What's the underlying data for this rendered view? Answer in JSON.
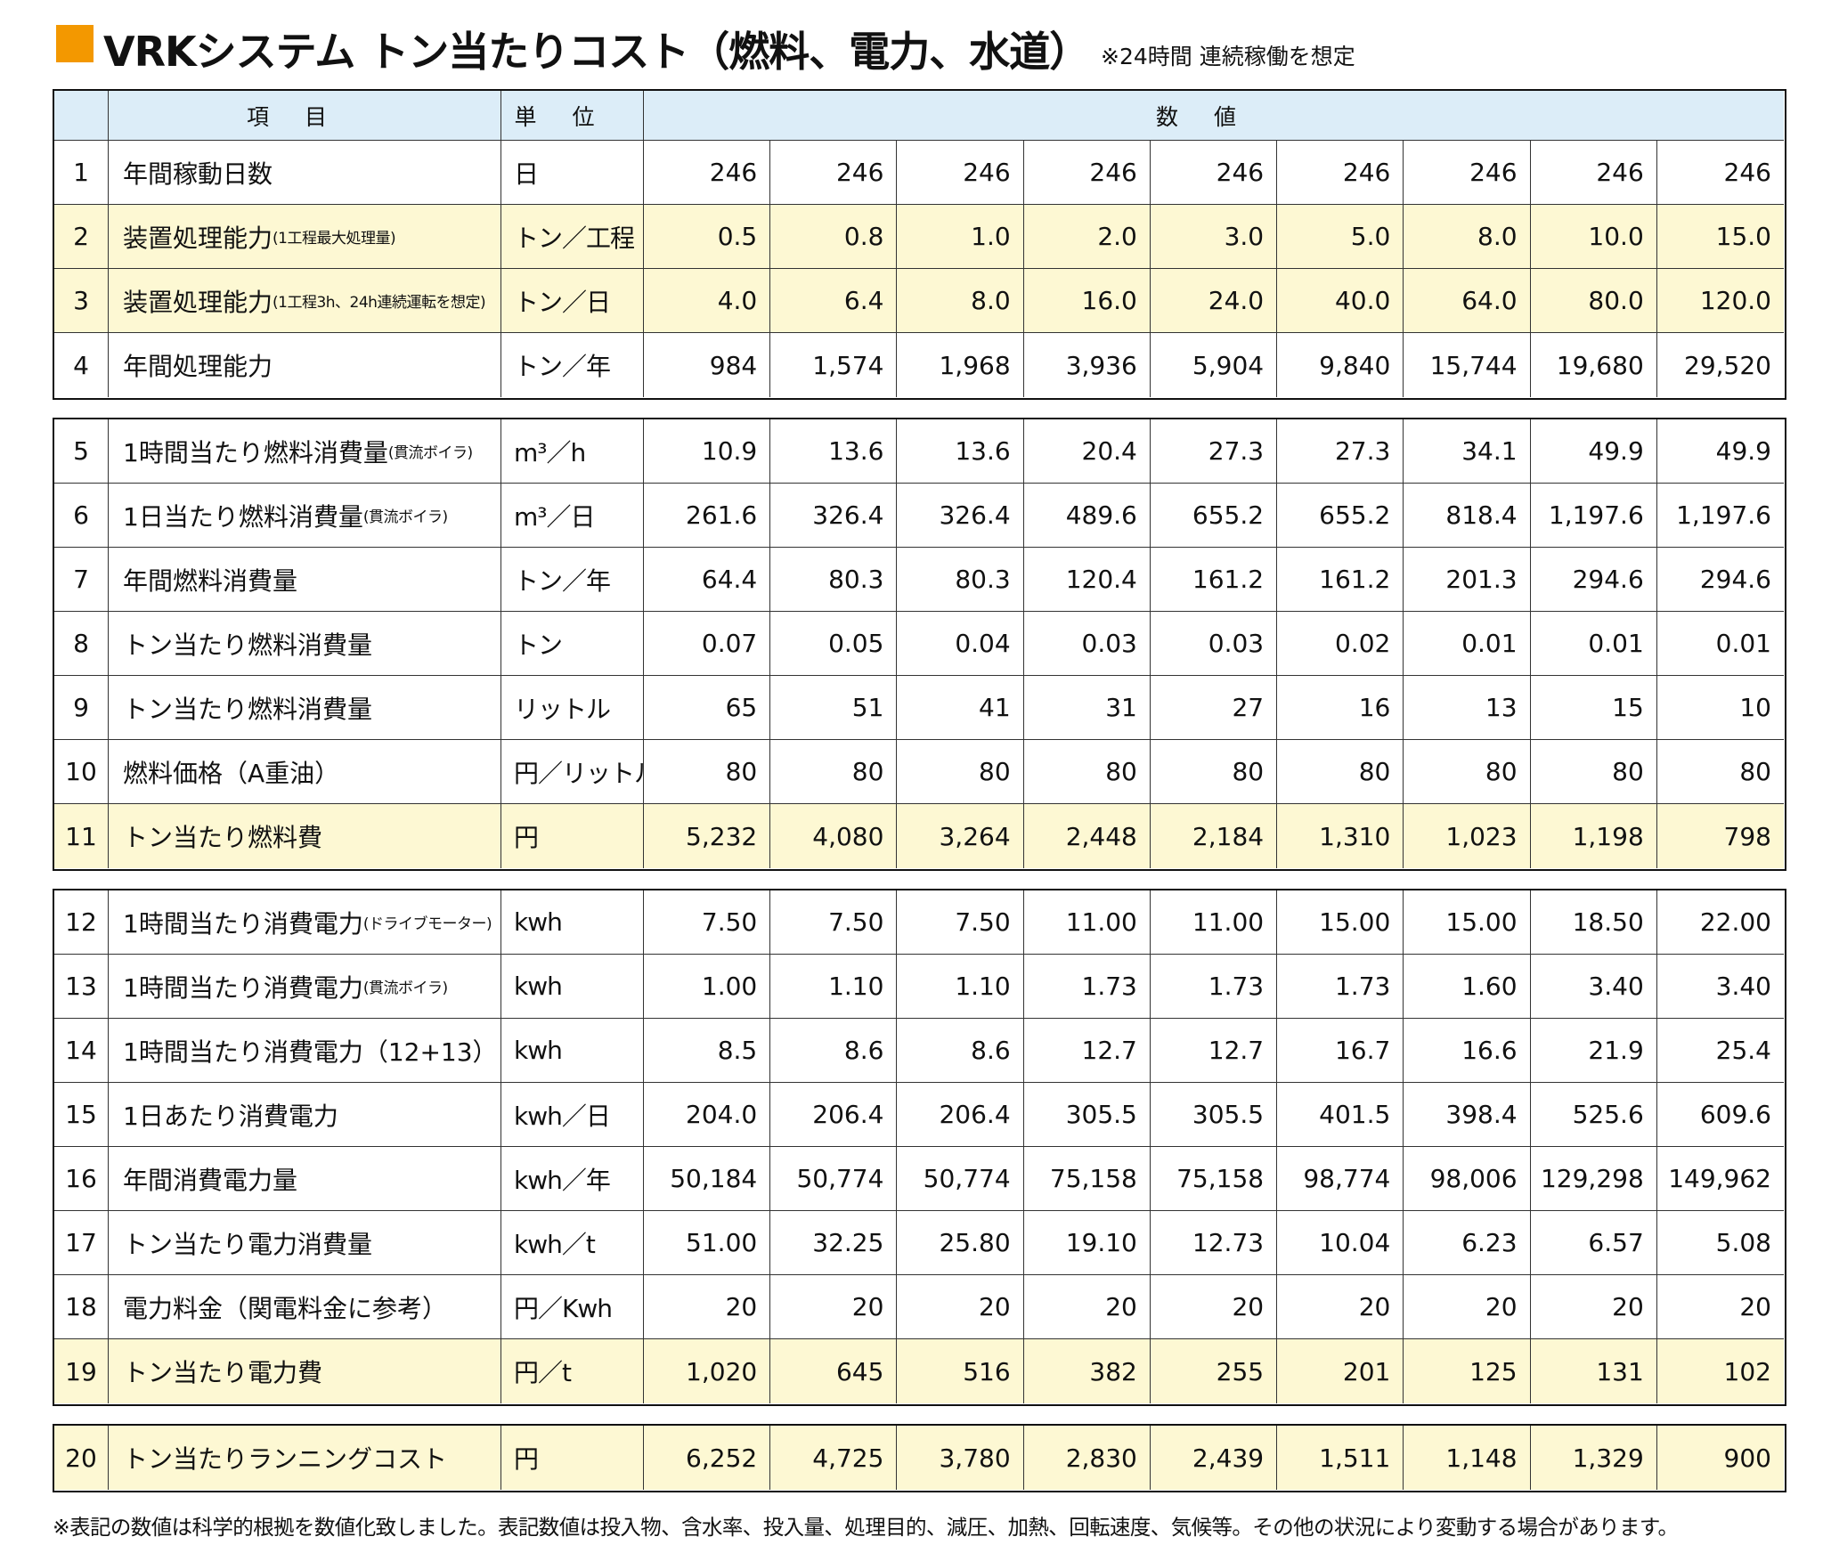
{
  "title": "VRKシステム トン当たりコスト（燃料、電力、水道）",
  "title_note": "※24時間 連続稼働を想定",
  "header": {
    "item": "項目",
    "unit": "単位",
    "values": "数値"
  },
  "groups": [
    {
      "rows": [
        {
          "no": "1",
          "label": "年間稼動日数",
          "unit": "日",
          "values": [
            "246",
            "246",
            "246",
            "246",
            "246",
            "246",
            "246",
            "246",
            "246"
          ]
        },
        {
          "no": "2",
          "label": "装置処理能力",
          "label_note": "(1工程最大処理量)",
          "unit": "トン／工程",
          "color": "#fdf8d3",
          "values": [
            "0.5",
            "0.8",
            "1.0",
            "2.0",
            "3.0",
            "5.0",
            "8.0",
            "10.0",
            "15.0"
          ]
        },
        {
          "no": "3",
          "label": "装置処理能力",
          "label_note": "(1工程3h、24h連続運転を想定)",
          "unit": "トン／日",
          "color": "#fdf8d3",
          "values": [
            "4.0",
            "6.4",
            "8.0",
            "16.0",
            "24.0",
            "40.0",
            "64.0",
            "80.0",
            "120.0"
          ]
        },
        {
          "no": "4",
          "label": "年間処理能力",
          "unit": "トン／年",
          "values": [
            "984",
            "1,574",
            "1,968",
            "3,936",
            "5,904",
            "9,840",
            "15,744",
            "19,680",
            "29,520"
          ]
        }
      ]
    },
    {
      "rows": [
        {
          "no": "5",
          "label": "1時間当たり燃料消費量",
          "label_note": "(貫流ボイラ)",
          "unit": "m³／h",
          "values": [
            "10.9",
            "13.6",
            "13.6",
            "20.4",
            "27.3",
            "27.3",
            "34.1",
            "49.9",
            "49.9"
          ]
        },
        {
          "no": "6",
          "label": "1日当たり燃料消費量",
          "label_note": "(貫流ボイラ)",
          "unit": "m³／日",
          "values": [
            "261.6",
            "326.4",
            "326.4",
            "489.6",
            "655.2",
            "655.2",
            "818.4",
            "1,197.6",
            "1,197.6"
          ]
        },
        {
          "no": "7",
          "label": "年間燃料消費量",
          "unit": "トン／年",
          "values": [
            "64.4",
            "80.3",
            "80.3",
            "120.4",
            "161.2",
            "161.2",
            "201.3",
            "294.6",
            "294.6"
          ]
        },
        {
          "no": "8",
          "label": "トン当たり燃料消費量",
          "unit": "トン",
          "values": [
            "0.07",
            "0.05",
            "0.04",
            "0.03",
            "0.03",
            "0.02",
            "0.01",
            "0.01",
            "0.01"
          ]
        },
        {
          "no": "9",
          "label": "トン当たり燃料消費量",
          "unit": "リットル",
          "values": [
            "65",
            "51",
            "41",
            "31",
            "27",
            "16",
            "13",
            "15",
            "10"
          ]
        },
        {
          "no": "10",
          "label": "燃料価格（A重油）",
          "unit": "円／リットル",
          "values": [
            "80",
            "80",
            "80",
            "80",
            "80",
            "80",
            "80",
            "80",
            "80"
          ]
        },
        {
          "no": "11",
          "label": "トン当たり燃料費",
          "unit": "円",
          "color": "#fdf8d3",
          "values": [
            "5,232",
            "4,080",
            "3,264",
            "2,448",
            "2,184",
            "1,310",
            "1,023",
            "1,198",
            "798"
          ]
        }
      ]
    },
    {
      "rows": [
        {
          "no": "12",
          "label": "1時間当たり消費電力",
          "label_note": "(ドライブモーター)",
          "unit": "kwh",
          "values": [
            "7.50",
            "7.50",
            "7.50",
            "11.00",
            "11.00",
            "15.00",
            "15.00",
            "18.50",
            "22.00"
          ]
        },
        {
          "no": "13",
          "label": "1時間当たり消費電力",
          "label_note": "(貫流ボイラ)",
          "unit": "kwh",
          "values": [
            "1.00",
            "1.10",
            "1.10",
            "1.73",
            "1.73",
            "1.73",
            "1.60",
            "3.40",
            "3.40"
          ]
        },
        {
          "no": "14",
          "label": "1時間当たり消費電力（12+13）",
          "unit": "kwh",
          "values": [
            "8.5",
            "8.6",
            "8.6",
            "12.7",
            "12.7",
            "16.7",
            "16.6",
            "21.9",
            "25.4"
          ]
        },
        {
          "no": "15",
          "label": "1日あたり消費電力",
          "unit": "kwh／日",
          "values": [
            "204.0",
            "206.4",
            "206.4",
            "305.5",
            "305.5",
            "401.5",
            "398.4",
            "525.6",
            "609.6"
          ]
        },
        {
          "no": "16",
          "label": "年間消費電力量",
          "unit": "kwh／年",
          "values": [
            "50,184",
            "50,774",
            "50,774",
            "75,158",
            "75,158",
            "98,774",
            "98,006",
            "129,298",
            "149,962"
          ]
        },
        {
          "no": "17",
          "label": "トン当たり電力消費量",
          "unit": "kwh／t",
          "values": [
            "51.00",
            "32.25",
            "25.80",
            "19.10",
            "12.73",
            "10.04",
            "6.23",
            "6.57",
            "5.08"
          ]
        },
        {
          "no": "18",
          "label": "電力料金（関電料金に参考）",
          "unit": "円／Kwh",
          "values": [
            "20",
            "20",
            "20",
            "20",
            "20",
            "20",
            "20",
            "20",
            "20"
          ]
        },
        {
          "no": "19",
          "label": "トン当たり電力費",
          "unit": "円／t",
          "color": "#fdf8d3",
          "values": [
            "1,020",
            "645",
            "516",
            "382",
            "255",
            "201",
            "125",
            "131",
            "102"
          ]
        }
      ]
    },
    {
      "rows": [
        {
          "no": "20",
          "label": "トン当たりランニングコスト",
          "unit": "円",
          "color": "#fdf8d3",
          "values": [
            "6,252",
            "4,725",
            "3,780",
            "2,830",
            "2,439",
            "1,511",
            "1,148",
            "1,329",
            "900"
          ]
        }
      ]
    }
  ],
  "footnote": "※表記の数値は科学的根拠を数値化致しました。表記数値は投入物、含水率、投入量、処理目的、減圧、加熱、回転速度、気候等。その他の状況により変動する場合があります。"
}
